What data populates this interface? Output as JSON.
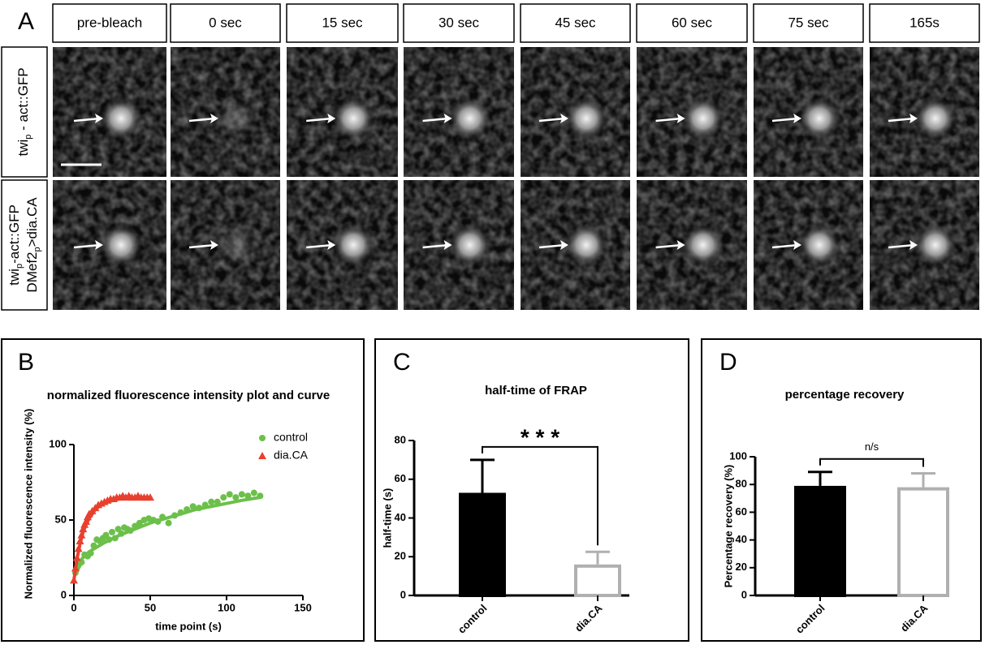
{
  "panel_a": {
    "label": "A",
    "timepoints": [
      "pre-bleach",
      "0 sec",
      "15 sec",
      "30 sec",
      "45 sec",
      "60 sec",
      "75 sec",
      "165s"
    ],
    "rows": [
      {
        "lines": [
          [
            "twi",
            "p",
            " - act::GFP"
          ]
        ]
      },
      {
        "lines": [
          [
            "twi",
            "p",
            "-act::GFP"
          ],
          [
            "DMef2",
            "p",
            ">dia.CA"
          ]
        ]
      }
    ]
  },
  "chart_data": [
    {
      "type": "scatter",
      "label": "B",
      "title": "normalized fluorescence intensity plot and curve",
      "xlabel": "time point (s)",
      "ylabel": "Normalized fluorescence intensity (%)",
      "xlim": [
        0,
        150
      ],
      "xticks": [
        0,
        50,
        100,
        150
      ],
      "ylim": [
        0,
        100
      ],
      "yticks": [
        0,
        50,
        100
      ],
      "legend": "upper right",
      "series": [
        {
          "name": "control",
          "color": "#6cc04a",
          "marker": "circle",
          "x": [
            1,
            2,
            3,
            5,
            7,
            9,
            11,
            13,
            15,
            17,
            19,
            21,
            23,
            25,
            27,
            29,
            31,
            33,
            35,
            37,
            40,
            43,
            46,
            49,
            52,
            55,
            58,
            62,
            66,
            70,
            74,
            78,
            82,
            86,
            90,
            94,
            98,
            102,
            106,
            110,
            114,
            118,
            122
          ],
          "values": [
            15,
            18,
            20,
            22,
            27,
            26,
            28,
            33,
            37,
            36,
            38,
            40,
            37,
            42,
            38,
            44,
            41,
            45,
            44,
            43,
            46,
            48,
            50,
            51,
            50,
            49,
            52,
            48,
            53,
            55,
            57,
            59,
            58,
            60,
            62,
            62,
            65,
            67,
            65,
            67,
            66,
            68,
            66
          ],
          "fit_x": [
            0,
            5,
            10,
            20,
            30,
            40,
            50,
            60,
            70,
            80,
            90,
            100,
            110,
            122
          ],
          "fit_values": [
            15,
            24,
            29,
            35,
            40,
            44,
            48,
            51,
            54,
            57,
            59,
            61,
            63,
            65
          ]
        },
        {
          "name": "dia.CA",
          "color": "#e8402f",
          "marker": "triangle",
          "x": [
            0,
            1,
            2,
            3,
            4,
            5,
            6,
            7,
            8,
            9,
            10,
            12,
            14,
            16,
            18,
            20,
            22,
            24,
            26,
            28,
            30,
            32,
            34,
            36,
            38,
            40,
            42,
            44,
            46,
            48,
            50
          ],
          "values": [
            10,
            18,
            25,
            31,
            36,
            40,
            44,
            47,
            49,
            52,
            54,
            56,
            58,
            60,
            61,
            62,
            63,
            64,
            64,
            65,
            65,
            66,
            65,
            66,
            65,
            65,
            66,
            65,
            65,
            65,
            65
          ],
          "fit_x": [
            0,
            2,
            4,
            6,
            8,
            10,
            14,
            18,
            22,
            26,
            30,
            35,
            40,
            45,
            50
          ],
          "fit_values": [
            10,
            24,
            34,
            42,
            47,
            51,
            57,
            60,
            62,
            63,
            64,
            65,
            65,
            65,
            65
          ]
        }
      ]
    },
    {
      "type": "bar",
      "label": "C",
      "title": "half-time of FRAP",
      "ylabel": "half-time (s)",
      "categories": [
        "control",
        "dia.CA"
      ],
      "values": [
        53,
        16
      ],
      "errors": [
        17,
        6.5
      ],
      "colors": [
        "#000000",
        "#ffffff"
      ],
      "edge_colors": [
        "#000000",
        "#b0b0b0"
      ],
      "ylim": [
        0,
        80
      ],
      "yticks": [
        0,
        20,
        40,
        60,
        80
      ],
      "annotation": "* * *"
    },
    {
      "type": "bar",
      "label": "D",
      "title": "percentage recovery",
      "ylabel": "Percentage recovery (%)",
      "categories": [
        "control",
        "dia.CA"
      ],
      "values": [
        79,
        78
      ],
      "errors": [
        10,
        10
      ],
      "colors": [
        "#000000",
        "#ffffff"
      ],
      "edge_colors": [
        "#000000",
        "#b0b0b0"
      ],
      "ylim": [
        0,
        100
      ],
      "yticks": [
        0,
        20,
        40,
        60,
        80,
        100
      ],
      "annotation": "n/s"
    }
  ]
}
